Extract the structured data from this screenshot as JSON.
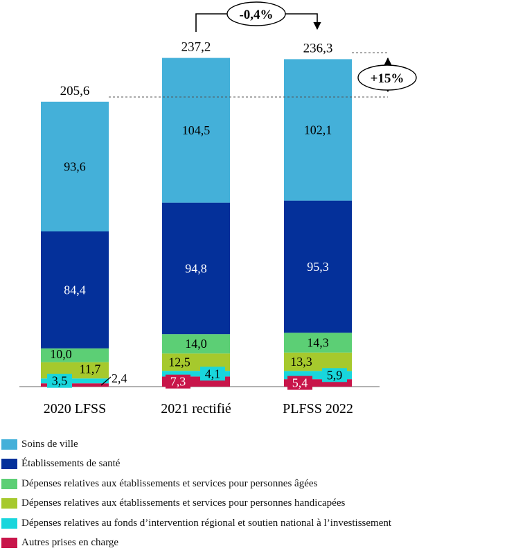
{
  "chart_data": {
    "type": "bar",
    "stacked": true,
    "categories": [
      "2020 LFSS",
      "2021 rectifié",
      "PLFSS 2022"
    ],
    "totals": [
      "205,6",
      "237,2",
      "236,3"
    ],
    "series": [
      {
        "name": "Autres prises en charge",
        "color": "#c8154a",
        "values": [
          2.4,
          7.3,
          5.4
        ],
        "labels": [
          "2,4",
          "7,3",
          "5,4"
        ]
      },
      {
        "name": "Dépenses relatives au fonds d’intervention régional et soutien national à l’investissement",
        "color": "#19d6dc",
        "values": [
          3.5,
          4.1,
          5.9
        ],
        "labels": [
          "3,5",
          "4,1",
          "5,9"
        ]
      },
      {
        "name": "Dépenses relatives aux établissements et services pour personnes handicapées",
        "color": "#a6c92d",
        "values": [
          11.7,
          12.5,
          13.3
        ],
        "labels": [
          "11,7",
          "12,5",
          "13,3"
        ]
      },
      {
        "name": "Dépenses relatives aux établissements et services pour personnes âgées",
        "color": "#5ccf75",
        "values": [
          10.0,
          14.0,
          14.3
        ],
        "labels": [
          "10,0",
          "14,0",
          "14,3"
        ]
      },
      {
        "name": "Établissements de santé",
        "color": "#04309a",
        "values": [
          84.4,
          94.8,
          95.3
        ],
        "labels": [
          "84,4",
          "94,8",
          "95,3"
        ]
      },
      {
        "name": "Soins de ville",
        "color": "#44b0d9",
        "values": [
          93.6,
          104.5,
          102.1
        ],
        "labels": [
          "93,6",
          "104,5",
          "102,1"
        ]
      }
    ],
    "annotations": {
      "change_2021_2022": "-0,4%",
      "change_2020_2022": "+15%"
    },
    "ylim": [
      0,
      240
    ],
    "grid": false,
    "legend_position": "bottom"
  },
  "legend": [
    {
      "label": "Soins de ville",
      "color": "#44b0d9"
    },
    {
      "label": "Établissements de santé",
      "color": "#04309a"
    },
    {
      "label": "Dépenses relatives aux établissements et services pour personnes âgées",
      "color": "#5ccf75"
    },
    {
      "label": "Dépenses relatives aux établissements et services pour personnes handicapées",
      "color": "#a6c92d"
    },
    {
      "label": "Dépenses relatives au fonds d’intervention régional et soutien national à l’investissement",
      "color": "#19d6dc"
    },
    {
      "label": "Autres prises en charge",
      "color": "#c8154a"
    }
  ]
}
